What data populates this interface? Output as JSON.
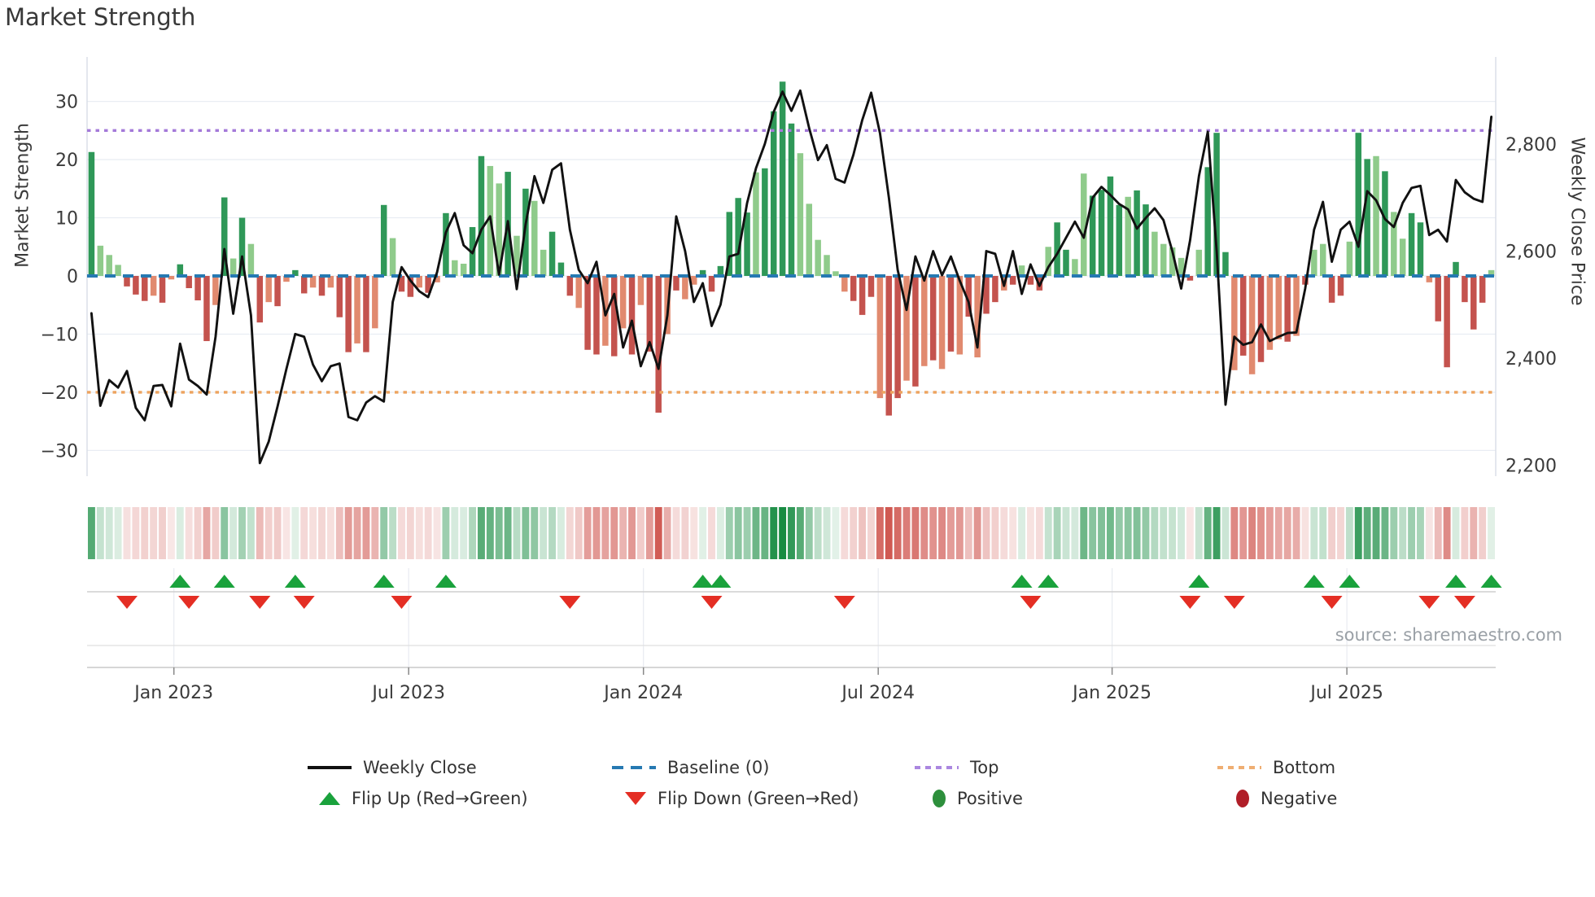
{
  "title": "Market Strength",
  "source": "source: sharemaestro.com",
  "left_axis": {
    "label": "Market Strength",
    "ticks": [
      {
        "v": 30,
        "label": "30"
      },
      {
        "v": 20,
        "label": "20"
      },
      {
        "v": 10,
        "label": "10"
      },
      {
        "v": 0,
        "label": "0"
      },
      {
        "v": -10,
        "label": "−10"
      },
      {
        "v": -20,
        "label": "−20"
      },
      {
        "v": -30,
        "label": "−30"
      }
    ]
  },
  "right_axis": {
    "label": "Weekly Close Price",
    "ticks": [
      {
        "v": 2800,
        "label": "2,800"
      },
      {
        "v": 2600,
        "label": "2,600"
      },
      {
        "v": 2400,
        "label": "2,400"
      },
      {
        "v": 2200,
        "label": "2,200"
      }
    ]
  },
  "x_axis": {
    "ticks": [
      {
        "label": "Jan 2023",
        "i": 9.3
      },
      {
        "label": "Jul 2023",
        "i": 35.8
      },
      {
        "label": "Jan 2024",
        "i": 62.3
      },
      {
        "label": "Jul 2024",
        "i": 88.8
      },
      {
        "label": "Jan 2025",
        "i": 115.2
      },
      {
        "label": "Jul 2025",
        "i": 141.7
      }
    ]
  },
  "chart_data": {
    "type": "combo: weekly bar indicator + price line + heatmap strip + flip markers",
    "x_start": "weekly data, ~Nov 2022 to ~Oct 2025, 159 weeks",
    "baseline": 0,
    "top_threshold": 25,
    "bottom_threshold": -20,
    "ylim_left": [
      -37,
      37
    ],
    "ylim_right": [
      2150,
      2950
    ],
    "bars": {
      "name": "Market Strength",
      "values": [
        21.3,
        5.2,
        3.6,
        1.9,
        -1.8,
        -3.2,
        -4.3,
        -3.4,
        -4.6,
        -0.6,
        2.0,
        -2.1,
        -4.2,
        -11.2,
        -5.0,
        13.5,
        3.0,
        10.0,
        5.5,
        -8.0,
        -4.5,
        -5.2,
        -1.0,
        1.0,
        -3.0,
        -2.0,
        -3.4,
        -2.0,
        -7.1,
        -13.1,
        -11.6,
        -13.1,
        -9.0,
        12.2,
        6.5,
        -2.7,
        -3.6,
        -2.0,
        -2.9,
        -1.1,
        10.8,
        2.7,
        2.1,
        8.4,
        20.6,
        18.9,
        15.9,
        17.9,
        6.9,
        15.0,
        12.9,
        4.5,
        7.6,
        2.3,
        -3.4,
        -5.5,
        -12.7,
        -13.5,
        -12.0,
        -13.8,
        -9.0,
        -13.5,
        -5.0,
        -13.0,
        -23.5,
        -10.0,
        -2.5,
        -4.0,
        -1.5,
        1.0,
        -2.7,
        1.7,
        11.0,
        13.4,
        10.9,
        17.8,
        18.5,
        28.3,
        33.4,
        26.2,
        21.1,
        12.4,
        6.2,
        3.6,
        0.8,
        -2.7,
        -4.3,
        -6.7,
        -3.6,
        -21.0,
        -24.0,
        -21.0,
        -18.0,
        -19.0,
        -15.5,
        -14.5,
        -16.0,
        -13.0,
        -13.5,
        -7.0,
        -14.0,
        -6.5,
        -4.5,
        -2.5,
        -1.5,
        1.8,
        -1.5,
        -2.5,
        5.0,
        9.2,
        4.5,
        2.9,
        17.6,
        13.8,
        14.8,
        17.1,
        12.2,
        13.6,
        14.7,
        12.3,
        7.6,
        5.5,
        4.9,
        3.1,
        -0.8,
        4.5,
        18.7,
        24.6,
        4.1,
        -16.2,
        -13.7,
        -16.9,
        -14.8,
        -12.7,
        -10.9,
        -11.3,
        -10.3,
        -1.5,
        4.5,
        5.5,
        -4.6,
        -3.4,
        5.9,
        24.6,
        20.1,
        20.6,
        18.0,
        11.0,
        6.4,
        10.8,
        9.2,
        -1.1,
        -7.8,
        -15.7,
        2.4,
        -4.5,
        -9.2,
        -4.6,
        1.0
      ],
      "shade": "dllldddldlddddldldldldlddldlddldldlddldldllddlldldlldddlddldldlddldllddddddlddddlllllldddlddldldldldlddldlddlddllddddlddlllldldddldldlldldllddlddldllddlddddddld"
    },
    "line": {
      "name": "Weekly Close",
      "values": [
        2484,
        2311,
        2359,
        2345,
        2376,
        2307,
        2284,
        2348,
        2350,
        2310,
        2427,
        2360,
        2348,
        2332,
        2440,
        2604,
        2483,
        2590,
        2480,
        2204,
        2244,
        2310,
        2380,
        2445,
        2440,
        2388,
        2357,
        2385,
        2390,
        2290,
        2284,
        2317,
        2329,
        2319,
        2505,
        2570,
        2545,
        2525,
        2514,
        2560,
        2635,
        2671,
        2611,
        2596,
        2640,
        2665,
        2556,
        2656,
        2529,
        2650,
        2740,
        2690,
        2752,
        2764,
        2640,
        2565,
        2540,
        2580,
        2480,
        2520,
        2420,
        2470,
        2385,
        2430,
        2380,
        2480,
        2665,
        2600,
        2505,
        2540,
        2460,
        2500,
        2590,
        2595,
        2690,
        2755,
        2800,
        2860,
        2898,
        2862,
        2900,
        2830,
        2770,
        2798,
        2735,
        2728,
        2780,
        2845,
        2896,
        2820,
        2700,
        2565,
        2490,
        2590,
        2545,
        2600,
        2555,
        2590,
        2545,
        2505,
        2420,
        2600,
        2595,
        2535,
        2600,
        2520,
        2575,
        2535,
        2570,
        2595,
        2625,
        2655,
        2625,
        2700,
        2720,
        2705,
        2688,
        2678,
        2642,
        2662,
        2680,
        2658,
        2600,
        2530,
        2620,
        2740,
        2823,
        2600,
        2313,
        2440,
        2425,
        2430,
        2463,
        2432,
        2440,
        2447,
        2448,
        2530,
        2640,
        2692,
        2580,
        2640,
        2655,
        2608,
        2712,
        2695,
        2660,
        2645,
        2690,
        2718,
        2722,
        2630,
        2640,
        2618,
        2733,
        2710,
        2698,
        2692,
        2851
      ]
    },
    "flip_up_indices": [
      10,
      15,
      23,
      33,
      40,
      69,
      71,
      105,
      108,
      125,
      138,
      142,
      154,
      158
    ],
    "flip_down_indices": [
      4,
      11,
      19,
      24,
      35,
      54,
      70,
      85,
      106,
      124,
      129,
      140,
      151,
      155
    ],
    "colors": {
      "bar_green_dark": "#2f9858",
      "bar_green_light": "#8fcb8b",
      "bar_red_dark": "#c4534e",
      "bar_red_light": "#e18a6f",
      "price_line": "#111111",
      "baseline": "#2679b2",
      "top_line": "#a47ad9",
      "bottom_line": "#eda45f",
      "flip_up": "#1aa23c",
      "flip_down": "#e42e24",
      "heat_green": "#188c42",
      "heat_red": "#c6342c",
      "grid": "#e9edf3"
    }
  },
  "legend": {
    "row1": [
      {
        "label": "Weekly Close",
        "swatch": "black-line"
      },
      {
        "label": "Baseline (0)",
        "swatch": "blue-dashed"
      },
      {
        "label": "Top",
        "swatch": "purple-dotted"
      },
      {
        "label": "Bottom",
        "swatch": "orange-dotted"
      }
    ],
    "row2": [
      {
        "label": "Flip Up (Red→Green)",
        "swatch": "green-up-triangle"
      },
      {
        "label": "Flip Down (Green→Red)",
        "swatch": "red-down-triangle"
      },
      {
        "label": "Positive",
        "swatch": "green-circle"
      },
      {
        "label": "Negative",
        "swatch": "red-circle"
      }
    ]
  }
}
